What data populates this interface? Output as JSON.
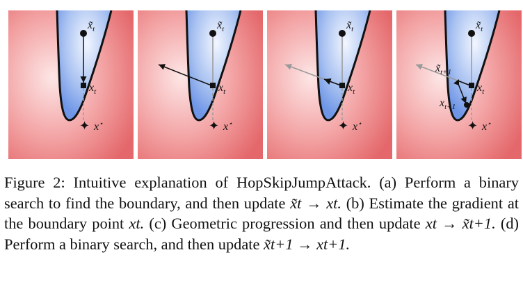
{
  "figure": {
    "panels": [
      {
        "id": "a",
        "labels": {
          "x_tilde_t": "x̃t",
          "x_t": "xt",
          "x_star": "x*"
        }
      },
      {
        "id": "b",
        "labels": {
          "x_tilde_t": "x̃t",
          "x_t": "xt",
          "x_star": "x*"
        }
      },
      {
        "id": "c",
        "labels": {
          "x_tilde_t": "x̃t",
          "x_t": "xt",
          "x_star": "x*"
        }
      },
      {
        "id": "d",
        "labels": {
          "x_tilde_t": "x̃t",
          "x_t": "xt",
          "x_tilde_t1": "x̃t+1",
          "x_t1": "xt+1",
          "x_star": "x*"
        }
      }
    ],
    "colors": {
      "adversarial_region": "#e8676a",
      "boundary_region": "#6e95e6",
      "arrow_gray": "#9a9a9a"
    }
  },
  "caption": {
    "figure_label": "Figure 2:",
    "title": "Intuitive explanation of HopSkipJumpAttack.",
    "part_a": "(a) Perform a binary search to find the boundary, and then update",
    "update_a": "x̃t → xt.",
    "part_b": "(b) Estimate the gradient at the boundary point",
    "point_b": "xt.",
    "part_c": "(c) Geometric progression and then update",
    "update_c": "xt → x̃t+1.",
    "part_d": "(d) Perform a binary search, and then update",
    "update_d": "x̃t+1 → xt+1."
  }
}
